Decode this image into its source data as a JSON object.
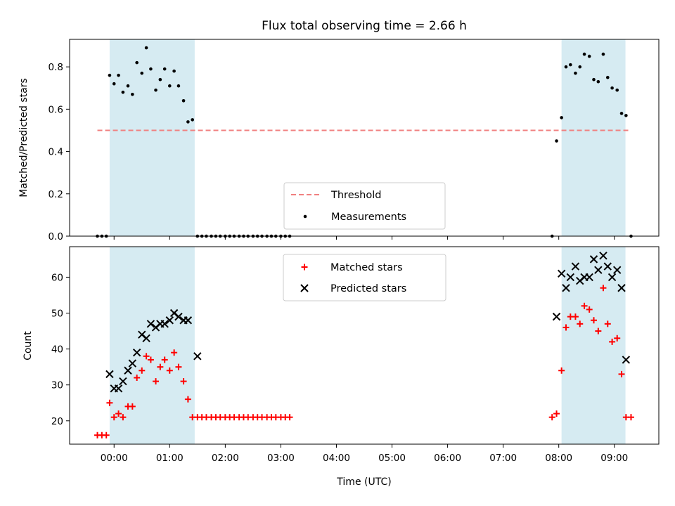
{
  "chart_data": {
    "type": "scatter",
    "title": "Flux total observing time = 2.66 h",
    "xlabel": "Time (UTC)",
    "x_tick_labels": [
      "00:00",
      "01:00",
      "02:00",
      "03:00",
      "04:00",
      "05:00",
      "06:00",
      "07:00",
      "08:00",
      "09:00"
    ],
    "x_tick_hours": [
      0,
      1,
      2,
      3,
      4,
      5,
      6,
      7,
      8,
      9
    ],
    "xlim_hours": [
      -0.8,
      9.8
    ],
    "observing_windows_hours": [
      [
        -0.08,
        1.45
      ],
      [
        8.05,
        9.2
      ]
    ],
    "colors": {
      "window": "#add8e6",
      "threshold": "#f08080",
      "measurements": "#000000",
      "matched": "#ff0000",
      "predicted": "#000000"
    },
    "top_panel": {
      "ylabel": "Matched/Predicted stars",
      "ylim": [
        0,
        0.93
      ],
      "y_ticks": [
        0.0,
        0.2,
        0.4,
        0.6,
        0.8
      ],
      "y_tick_labels": [
        "0.0",
        "0.2",
        "0.4",
        "0.6",
        "0.8"
      ],
      "threshold_value": 0.5,
      "threshold_x_range": [
        -0.3,
        9.25
      ],
      "legend_threshold": "Threshold",
      "legend_measurements": "Measurements",
      "measurements_x": [
        -0.3,
        -0.22,
        -0.14,
        -0.08,
        0.0,
        0.08,
        0.16,
        0.25,
        0.33,
        0.41,
        0.5,
        0.58,
        0.66,
        0.75,
        0.83,
        0.91,
        1.0,
        1.08,
        1.16,
        1.25,
        1.33,
        1.41,
        1.5,
        1.58,
        1.66,
        1.75,
        1.83,
        1.91,
        2.0,
        2.08,
        2.16,
        2.25,
        2.33,
        2.41,
        2.5,
        2.58,
        2.66,
        2.75,
        2.83,
        2.91,
        3.0,
        3.08,
        3.16,
        7.88,
        7.96,
        8.05,
        8.13,
        8.21,
        8.3,
        8.38,
        8.46,
        8.55,
        8.63,
        8.71,
        8.8,
        8.88,
        8.96,
        9.05,
        9.13,
        9.21,
        9.3
      ],
      "measurements_y": [
        0.0,
        0.0,
        0.0,
        0.76,
        0.72,
        0.76,
        0.68,
        0.71,
        0.67,
        0.82,
        0.77,
        0.89,
        0.79,
        0.69,
        0.74,
        0.79,
        0.71,
        0.78,
        0.71,
        0.64,
        0.54,
        0.55,
        0.0,
        0.0,
        0.0,
        0.0,
        0.0,
        0.0,
        0.0,
        0.0,
        0.0,
        0.0,
        0.0,
        0.0,
        0.0,
        0.0,
        0.0,
        0.0,
        0.0,
        0.0,
        0.0,
        0.0,
        0.0,
        0.0,
        0.45,
        0.56,
        0.8,
        0.81,
        0.77,
        0.8,
        0.86,
        0.85,
        0.74,
        0.73,
        0.86,
        0.75,
        0.7,
        0.69,
        0.58,
        0.57,
        0.0
      ]
    },
    "bottom_panel": {
      "ylabel": "Count",
      "ylim": [
        13.5,
        68.5
      ],
      "y_ticks": [
        20,
        30,
        40,
        50,
        60
      ],
      "y_tick_labels": [
        "20",
        "30",
        "40",
        "50",
        "60"
      ],
      "legend_matched": "Matched stars",
      "legend_predicted": "Predicted stars",
      "matched_x": [
        -0.3,
        -0.22,
        -0.14,
        -0.08,
        0.0,
        0.08,
        0.16,
        0.25,
        0.33,
        0.41,
        0.5,
        0.58,
        0.66,
        0.75,
        0.83,
        0.91,
        1.0,
        1.08,
        1.16,
        1.25,
        1.33,
        1.41,
        1.5,
        1.58,
        1.66,
        1.75,
        1.83,
        1.91,
        2.0,
        2.08,
        2.16,
        2.25,
        2.33,
        2.41,
        2.5,
        2.58,
        2.66,
        2.75,
        2.83,
        2.91,
        3.0,
        3.08,
        3.16,
        7.88,
        7.96,
        8.05,
        8.13,
        8.21,
        8.3,
        8.38,
        8.46,
        8.55,
        8.63,
        8.71,
        8.8,
        8.88,
        8.96,
        9.05,
        9.13,
        9.21,
        9.3
      ],
      "matched_y": [
        16,
        16,
        16,
        25,
        21,
        22,
        21,
        24,
        24,
        32,
        34,
        38,
        37,
        31,
        35,
        37,
        34,
        39,
        35,
        31,
        26,
        21,
        21,
        21,
        21,
        21,
        21,
        21,
        21,
        21,
        21,
        21,
        21,
        21,
        21,
        21,
        21,
        21,
        21,
        21,
        21,
        21,
        21,
        21,
        22,
        34,
        46,
        49,
        49,
        47,
        52,
        51,
        48,
        45,
        57,
        47,
        42,
        43,
        33,
        21,
        21
      ],
      "predicted_x": [
        -0.08,
        0.0,
        0.08,
        0.16,
        0.25,
        0.33,
        0.41,
        0.5,
        0.58,
        0.66,
        0.75,
        0.83,
        0.91,
        1.0,
        1.08,
        1.16,
        1.25,
        1.33,
        1.5,
        7.96,
        8.05,
        8.13,
        8.21,
        8.3,
        8.38,
        8.46,
        8.55,
        8.63,
        8.71,
        8.8,
        8.88,
        8.96,
        9.05,
        9.13,
        9.21
      ],
      "predicted_y": [
        33,
        29,
        29,
        31,
        34,
        36,
        39,
        44,
        43,
        47,
        46,
        47,
        47,
        48,
        50,
        49,
        48,
        48,
        38,
        49,
        61,
        57,
        60,
        63,
        59,
        60,
        60,
        65,
        62,
        66,
        63,
        60,
        62,
        57,
        37
      ]
    }
  }
}
